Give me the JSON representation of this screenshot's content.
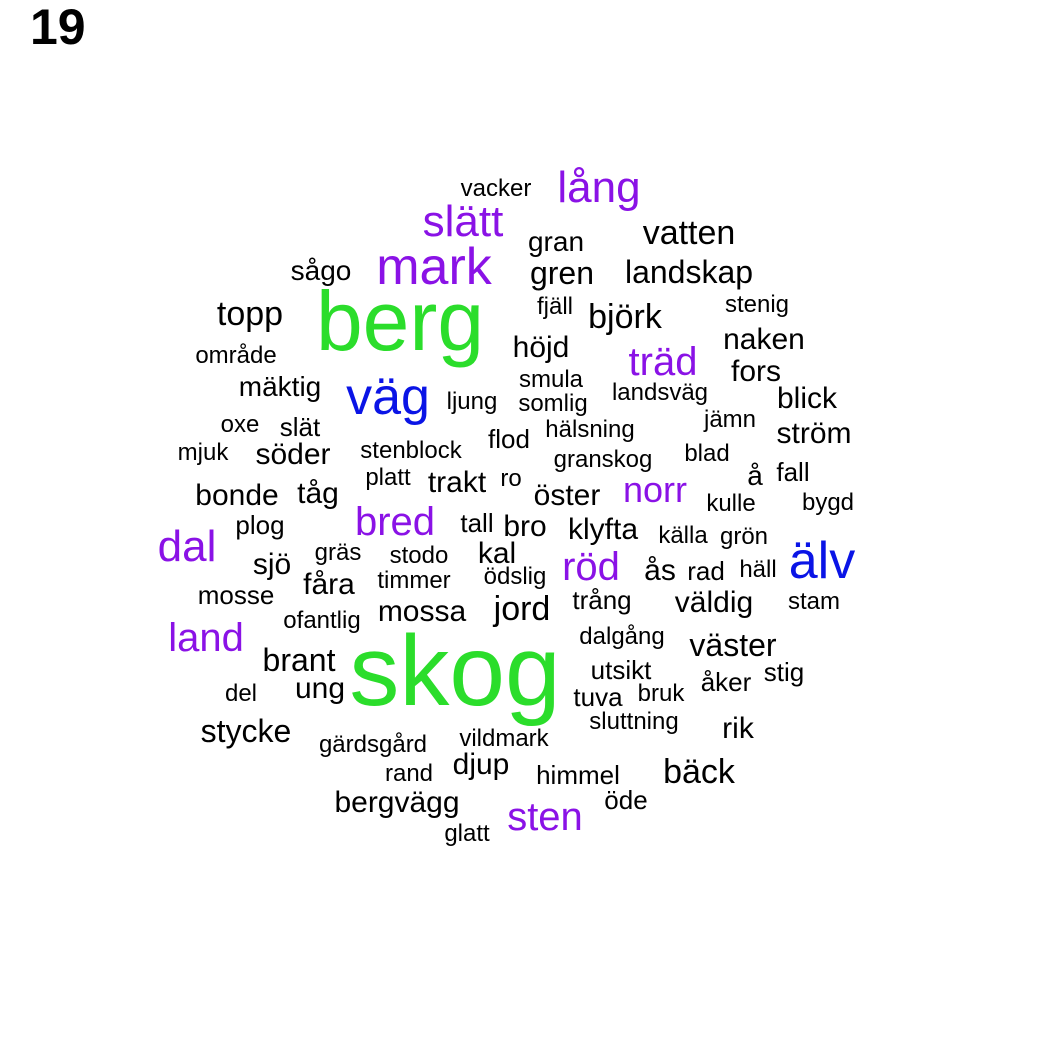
{
  "title": "19",
  "colors": {
    "top": "#2bdd2b",
    "high": "#0a14e6",
    "mid": "#8a12e6",
    "base": "#000000"
  },
  "words": [
    {
      "text": "skog",
      "tier": "top"
    },
    {
      "text": "berg",
      "tier": "top"
    },
    {
      "text": "väg",
      "tier": "high"
    },
    {
      "text": "älv",
      "tier": "high"
    },
    {
      "text": "mark",
      "tier": "mid"
    },
    {
      "text": "slätt",
      "tier": "mid"
    },
    {
      "text": "lång",
      "tier": "mid"
    },
    {
      "text": "träd",
      "tier": "mid"
    },
    {
      "text": "dal",
      "tier": "mid"
    },
    {
      "text": "bred",
      "tier": "mid"
    },
    {
      "text": "norr",
      "tier": "mid"
    },
    {
      "text": "röd",
      "tier": "mid"
    },
    {
      "text": "land",
      "tier": "mid"
    },
    {
      "text": "sten",
      "tier": "mid"
    },
    {
      "text": "vacker",
      "tier": "base"
    },
    {
      "text": "vatten",
      "tier": "base"
    },
    {
      "text": "gran",
      "tier": "base"
    },
    {
      "text": "sågo",
      "tier": "base"
    },
    {
      "text": "gren",
      "tier": "base"
    },
    {
      "text": "landskap",
      "tier": "base"
    },
    {
      "text": "topp",
      "tier": "base"
    },
    {
      "text": "fjäll",
      "tier": "base"
    },
    {
      "text": "björk",
      "tier": "base"
    },
    {
      "text": "stenig",
      "tier": "base"
    },
    {
      "text": "område",
      "tier": "base"
    },
    {
      "text": "höjd",
      "tier": "base"
    },
    {
      "text": "naken",
      "tier": "base"
    },
    {
      "text": "mäktig",
      "tier": "base"
    },
    {
      "text": "smula",
      "tier": "base"
    },
    {
      "text": "fors",
      "tier": "base"
    },
    {
      "text": "ljung",
      "tier": "base"
    },
    {
      "text": "somlig",
      "tier": "base"
    },
    {
      "text": "landsväg",
      "tier": "base"
    },
    {
      "text": "blick",
      "tier": "base"
    },
    {
      "text": "oxe",
      "tier": "base"
    },
    {
      "text": "slät",
      "tier": "base"
    },
    {
      "text": "jämn",
      "tier": "base"
    },
    {
      "text": "flod",
      "tier": "base"
    },
    {
      "text": "hälsning",
      "tier": "base"
    },
    {
      "text": "ström",
      "tier": "base"
    },
    {
      "text": "mjuk",
      "tier": "base"
    },
    {
      "text": "söder",
      "tier": "base"
    },
    {
      "text": "stenblock",
      "tier": "base"
    },
    {
      "text": "granskog",
      "tier": "base"
    },
    {
      "text": "blad",
      "tier": "base"
    },
    {
      "text": "å",
      "tier": "base"
    },
    {
      "text": "fall",
      "tier": "base"
    },
    {
      "text": "platt",
      "tier": "base"
    },
    {
      "text": "trakt",
      "tier": "base"
    },
    {
      "text": "ro",
      "tier": "base"
    },
    {
      "text": "bonde",
      "tier": "base"
    },
    {
      "text": "tåg",
      "tier": "base"
    },
    {
      "text": "öster",
      "tier": "base"
    },
    {
      "text": "kulle",
      "tier": "base"
    },
    {
      "text": "bygd",
      "tier": "base"
    },
    {
      "text": "plog",
      "tier": "base"
    },
    {
      "text": "tall",
      "tier": "base"
    },
    {
      "text": "bro",
      "tier": "base"
    },
    {
      "text": "klyfta",
      "tier": "base"
    },
    {
      "text": "källa",
      "tier": "base"
    },
    {
      "text": "grön",
      "tier": "base"
    },
    {
      "text": "gräs",
      "tier": "base"
    },
    {
      "text": "stodo",
      "tier": "base"
    },
    {
      "text": "kal",
      "tier": "base"
    },
    {
      "text": "sjö",
      "tier": "base"
    },
    {
      "text": "ås",
      "tier": "base"
    },
    {
      "text": "rad",
      "tier": "base"
    },
    {
      "text": "häll",
      "tier": "base"
    },
    {
      "text": "fåra",
      "tier": "base"
    },
    {
      "text": "timmer",
      "tier": "base"
    },
    {
      "text": "ödslig",
      "tier": "base"
    },
    {
      "text": "mosse",
      "tier": "base"
    },
    {
      "text": "trång",
      "tier": "base"
    },
    {
      "text": "väldig",
      "tier": "base"
    },
    {
      "text": "stam",
      "tier": "base"
    },
    {
      "text": "ofantlig",
      "tier": "base"
    },
    {
      "text": "mossa",
      "tier": "base"
    },
    {
      "text": "jord",
      "tier": "base"
    },
    {
      "text": "dalgång",
      "tier": "base"
    },
    {
      "text": "väster",
      "tier": "base"
    },
    {
      "text": "brant",
      "tier": "base"
    },
    {
      "text": "utsikt",
      "tier": "base"
    },
    {
      "text": "stig",
      "tier": "base"
    },
    {
      "text": "åker",
      "tier": "base"
    },
    {
      "text": "del",
      "tier": "base"
    },
    {
      "text": "ung",
      "tier": "base"
    },
    {
      "text": "bruk",
      "tier": "base"
    },
    {
      "text": "tuva",
      "tier": "base"
    },
    {
      "text": "sluttning",
      "tier": "base"
    },
    {
      "text": "stycke",
      "tier": "base"
    },
    {
      "text": "rik",
      "tier": "base"
    },
    {
      "text": "gärdsgård",
      "tier": "base"
    },
    {
      "text": "vildmark",
      "tier": "base"
    },
    {
      "text": "djup",
      "tier": "base"
    },
    {
      "text": "rand",
      "tier": "base"
    },
    {
      "text": "himmel",
      "tier": "base"
    },
    {
      "text": "bäck",
      "tier": "base"
    },
    {
      "text": "bergvägg",
      "tier": "base"
    },
    {
      "text": "öde",
      "tier": "base"
    },
    {
      "text": "glatt",
      "tier": "base"
    }
  ]
}
